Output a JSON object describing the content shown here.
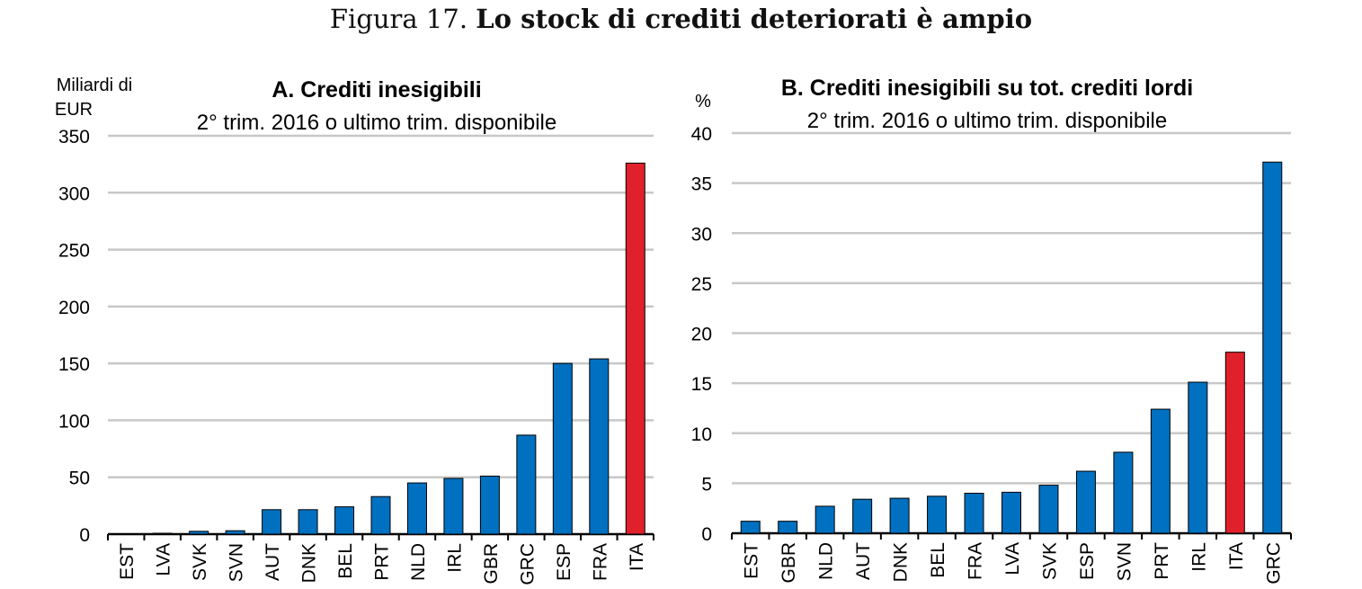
{
  "figure": {
    "number": "Figura 17.",
    "title": "Lo stock di crediti deteriorati è ampio"
  },
  "colors": {
    "bar": "#0070C0",
    "highlight": "#E0202A",
    "grid": "#C8C8C8",
    "axis": "#000000"
  },
  "chart_data": [
    {
      "type": "bar",
      "title": "A. Crediti inesigibili",
      "subtitle": "2° trim. 2016  o ultimo trim. disponibile",
      "ylabel_line1": "Miliardi di",
      "ylabel_line2": "EUR",
      "xlabel": "",
      "ylim": [
        0,
        350
      ],
      "yticks": [
        0,
        50,
        100,
        150,
        200,
        250,
        300,
        350
      ],
      "grid": true,
      "highlight_category": "ITA",
      "categories": [
        "EST",
        "LVA",
        "SVK",
        "SVN",
        "AUT",
        "DNK",
        "BEL",
        "PRT",
        "NLD",
        "IRL",
        "GBR",
        "GRC",
        "ESP",
        "FRA",
        "ITA"
      ],
      "values": [
        0.4,
        0.8,
        2.5,
        3,
        21.5,
        21.5,
        24,
        33,
        45,
        49,
        51,
        87,
        150,
        154,
        326
      ]
    },
    {
      "type": "bar",
      "title": "B. Crediti inesigibili su tot. crediti lordi",
      "subtitle": "2° trim. 2016 o ultimo trim. disponibile",
      "ylabel_line1": "%",
      "ylabel_line2": "",
      "xlabel": "",
      "ylim": [
        0,
        40
      ],
      "yticks": [
        0,
        5,
        10,
        15,
        20,
        25,
        30,
        35,
        40
      ],
      "grid": true,
      "highlight_category": "ITA",
      "categories": [
        "EST",
        "GBR",
        "NLD",
        "AUT",
        "DNK",
        "BEL",
        "FRA",
        "LVA",
        "SVK",
        "ESP",
        "SVN",
        "PRT",
        "IRL",
        "ITA",
        "GRC"
      ],
      "values": [
        1.2,
        1.2,
        2.7,
        3.4,
        3.5,
        3.7,
        4.0,
        4.1,
        4.8,
        6.2,
        8.1,
        12.4,
        15.1,
        18.1,
        37.1
      ]
    }
  ]
}
